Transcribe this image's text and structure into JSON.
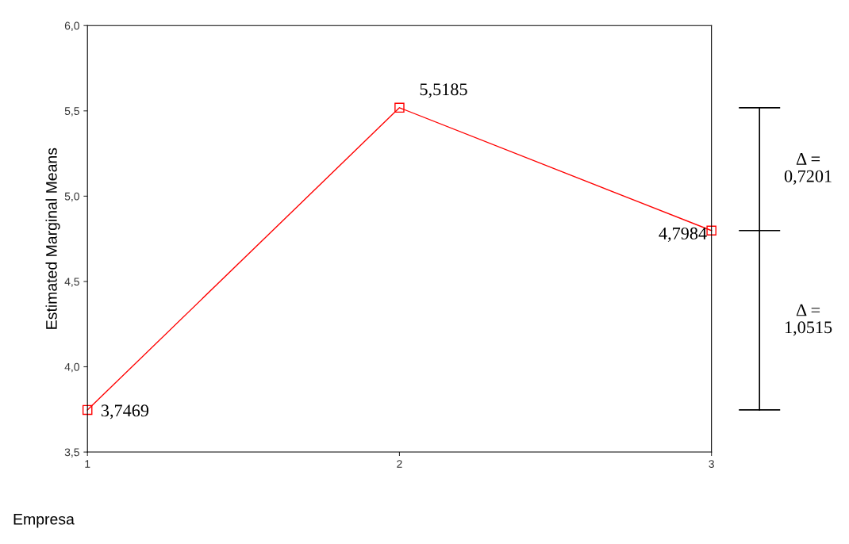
{
  "chart_data": {
    "type": "line",
    "xlabel": "Empresa",
    "ylabel": "Estimated Marginal Means",
    "x": [
      1,
      2,
      3
    ],
    "series": [
      {
        "color": "#ff0000",
        "values": [
          3.7469,
          5.5185,
          4.7984
        ],
        "value_labels": [
          "3,7469",
          "5,5185",
          "4,7984"
        ]
      }
    ],
    "xlim": [
      1,
      3
    ],
    "xticks": [
      1,
      2,
      3
    ],
    "ylim": [
      3.5,
      6.0
    ],
    "yticks": [
      {
        "value": 3.5,
        "label": "3,5"
      },
      {
        "value": 4.0,
        "label": "4,0"
      },
      {
        "value": 4.5,
        "label": "4,5"
      },
      {
        "value": 5.0,
        "label": "5,0"
      },
      {
        "value": 5.5,
        "label": "5,5"
      },
      {
        "value": 6.0,
        "label": "6,0"
      }
    ],
    "annotations": [
      "Δ =\n0,7201",
      "Δ =\n1,0515"
    ],
    "marker": "square",
    "line_style": "solid",
    "grid": false
  }
}
